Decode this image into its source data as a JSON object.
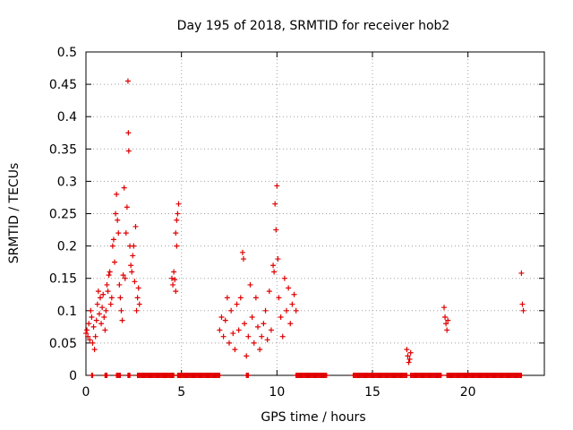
{
  "chart_data": {
    "type": "scatter",
    "title": "Day 195 of 2018, SRMTID for receiver hob2",
    "xlabel": "GPS time / hours",
    "ylabel": "SRMTID / TECUs",
    "xlim": [
      0,
      24
    ],
    "ylim": [
      0,
      0.5
    ],
    "xticks": [
      0,
      5,
      10,
      15,
      20
    ],
    "xtick_labels": [
      "0",
      "5",
      "10",
      "15",
      "20"
    ],
    "yticks": [
      0,
      0.05,
      0.1,
      0.15,
      0.2,
      0.25,
      0.3,
      0.35,
      0.4,
      0.45,
      0.5
    ],
    "ytick_labels": [
      "0",
      "0.05",
      "0.1",
      "0.15",
      "0.2",
      "0.25",
      "0.3",
      "0.35",
      "0.4",
      "0.45",
      "0.5"
    ],
    "grid": true,
    "marker": "plus",
    "color": "#e00000",
    "series": [
      {
        "name": "SRMTID",
        "points": [
          [
            0.0,
            0.065
          ],
          [
            0.05,
            0.07
          ],
          [
            0.1,
            0.06
          ],
          [
            0.15,
            0.08
          ],
          [
            0.2,
            0.055
          ],
          [
            0.25,
            0.1
          ],
          [
            0.3,
            0.09
          ],
          [
            0.35,
            0.05
          ],
          [
            0.4,
            0.075
          ],
          [
            0.45,
            0.04
          ],
          [
            0.5,
            0.06
          ],
          [
            0.55,
            0.085
          ],
          [
            0.6,
            0.11
          ],
          [
            0.65,
            0.13
          ],
          [
            0.7,
            0.095
          ],
          [
            0.75,
            0.12
          ],
          [
            0.8,
            0.08
          ],
          [
            0.85,
            0.105
          ],
          [
            0.9,
            0.125
          ],
          [
            0.95,
            0.09
          ],
          [
            1.0,
            0.07
          ],
          [
            1.05,
            0.1
          ],
          [
            1.1,
            0.14
          ],
          [
            1.15,
            0.13
          ],
          [
            1.2,
            0.155
          ],
          [
            1.25,
            0.16
          ],
          [
            1.3,
            0.11
          ],
          [
            1.35,
            0.12
          ],
          [
            1.4,
            0.2
          ],
          [
            1.45,
            0.21
          ],
          [
            1.5,
            0.175
          ],
          [
            1.55,
            0.25
          ],
          [
            1.6,
            0.28
          ],
          [
            1.65,
            0.24
          ],
          [
            1.7,
            0.22
          ],
          [
            1.75,
            0.14
          ],
          [
            1.8,
            0.12
          ],
          [
            1.85,
            0.1
          ],
          [
            1.9,
            0.085
          ],
          [
            1.95,
            0.155
          ],
          [
            2.0,
            0.29
          ],
          [
            2.05,
            0.15
          ],
          [
            2.1,
            0.22
          ],
          [
            2.15,
            0.26
          ],
          [
            2.2,
            0.455
          ],
          [
            2.22,
            0.375
          ],
          [
            2.24,
            0.347
          ],
          [
            2.3,
            0.2
          ],
          [
            2.35,
            0.17
          ],
          [
            2.4,
            0.16
          ],
          [
            2.45,
            0.185
          ],
          [
            2.5,
            0.2
          ],
          [
            2.55,
            0.145
          ],
          [
            2.6,
            0.23
          ],
          [
            2.65,
            0.1
          ],
          [
            2.7,
            0.12
          ],
          [
            2.75,
            0.135
          ],
          [
            2.8,
            0.11
          ],
          [
            4.5,
            0.15
          ],
          [
            4.55,
            0.14
          ],
          [
            4.6,
            0.16
          ],
          [
            4.65,
            0.148
          ],
          [
            4.7,
            0.22
          ],
          [
            4.75,
            0.2
          ],
          [
            4.8,
            0.25
          ],
          [
            4.85,
            0.265
          ],
          [
            4.7,
            0.13
          ],
          [
            4.75,
            0.24
          ],
          [
            7.0,
            0.07
          ],
          [
            7.1,
            0.09
          ],
          [
            7.2,
            0.06
          ],
          [
            7.3,
            0.085
          ],
          [
            7.4,
            0.12
          ],
          [
            7.5,
            0.05
          ],
          [
            7.6,
            0.1
          ],
          [
            7.7,
            0.065
          ],
          [
            7.8,
            0.04
          ],
          [
            7.9,
            0.11
          ],
          [
            8.0,
            0.07
          ],
          [
            8.1,
            0.12
          ],
          [
            8.2,
            0.19
          ],
          [
            8.25,
            0.18
          ],
          [
            8.3,
            0.08
          ],
          [
            8.4,
            0.03
          ],
          [
            8.5,
            0.06
          ],
          [
            8.6,
            0.14
          ],
          [
            8.7,
            0.09
          ],
          [
            8.8,
            0.05
          ],
          [
            8.9,
            0.12
          ],
          [
            9.0,
            0.075
          ],
          [
            9.1,
            0.04
          ],
          [
            9.2,
            0.06
          ],
          [
            9.3,
            0.08
          ],
          [
            9.4,
            0.1
          ],
          [
            9.5,
            0.055
          ],
          [
            9.6,
            0.13
          ],
          [
            9.7,
            0.07
          ],
          [
            9.8,
            0.17
          ],
          [
            9.85,
            0.16
          ],
          [
            9.9,
            0.265
          ],
          [
            9.95,
            0.225
          ],
          [
            10.0,
            0.293
          ],
          [
            10.05,
            0.18
          ],
          [
            10.1,
            0.12
          ],
          [
            10.2,
            0.09
          ],
          [
            10.3,
            0.06
          ],
          [
            10.4,
            0.15
          ],
          [
            10.5,
            0.1
          ],
          [
            10.6,
            0.135
          ],
          [
            10.7,
            0.08
          ],
          [
            10.8,
            0.11
          ],
          [
            10.9,
            0.125
          ],
          [
            11.0,
            0.1
          ],
          [
            16.8,
            0.04
          ],
          [
            16.85,
            0.03
          ],
          [
            16.9,
            0.02
          ],
          [
            16.95,
            0.025
          ],
          [
            17.0,
            0.035
          ],
          [
            18.75,
            0.105
          ],
          [
            18.8,
            0.09
          ],
          [
            18.85,
            0.08
          ],
          [
            18.9,
            0.07
          ],
          [
            18.95,
            0.085
          ],
          [
            22.8,
            0.158
          ],
          [
            22.85,
            0.11
          ],
          [
            22.9,
            0.1
          ]
        ],
        "zero_ranges": [
          [
            0.3,
            0.35
          ],
          [
            1.0,
            1.1
          ],
          [
            1.6,
            1.8
          ],
          [
            2.2,
            2.3
          ],
          [
            2.7,
            4.6
          ],
          [
            4.8,
            7.0
          ],
          [
            8.4,
            8.5
          ],
          [
            11.0,
            12.6
          ],
          [
            14.0,
            16.8
          ],
          [
            17.0,
            18.6
          ],
          [
            18.9,
            22.8
          ]
        ]
      }
    ]
  }
}
